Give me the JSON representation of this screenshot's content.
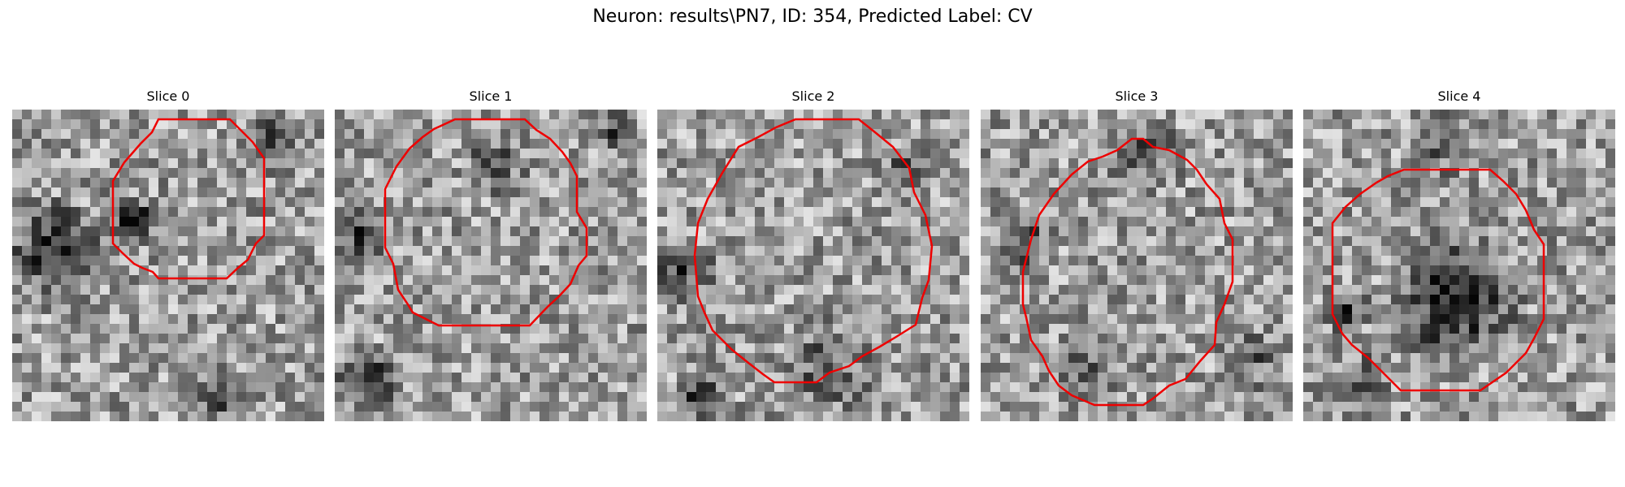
{
  "figure": {
    "title": "Neuron: results\\PN7, ID: 354, Predicted Label: CV",
    "contour_color": "#ee0000"
  },
  "slices": [
    {
      "title": "Slice 0"
    },
    {
      "title": "Slice 1"
    },
    {
      "title": "Slice 2"
    },
    {
      "title": "Slice 3"
    },
    {
      "title": "Slice 4"
    }
  ]
}
